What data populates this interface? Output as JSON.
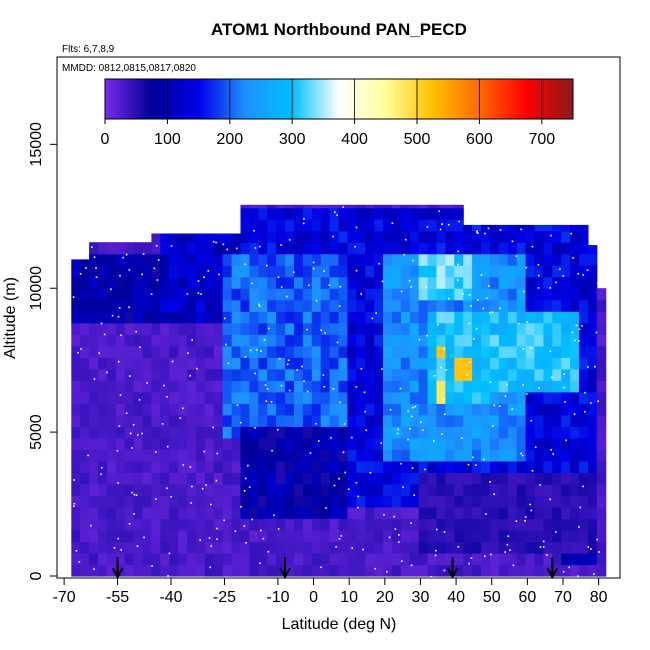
{
  "chart_data": {
    "type": "heatmap",
    "title": "ATOM1 Northbound PAN_PECD",
    "flights_label": "Flts: 6,7,8,9",
    "dates_label": "MMDD: 0812,0815,0817,0820",
    "xlabel": "Latitude (deg N)",
    "ylabel": "Altitude (m)",
    "xlim": [
      -72,
      86
    ],
    "ylim": [
      0,
      18000
    ],
    "x_ticks": [
      -70,
      -55,
      -40,
      -25,
      -10,
      0,
      10,
      20,
      30,
      40,
      50,
      60,
      70,
      80
    ],
    "x_tick_labels": [
      "-70",
      "-55",
      "-40",
      "-25",
      "-10",
      "0",
      "10",
      "20",
      "30",
      "40",
      "50",
      "60",
      "70",
      "80"
    ],
    "y_ticks": [
      0,
      5000,
      10000,
      15000
    ],
    "y_tick_labels": [
      "0",
      "5000",
      "10000",
      "15000"
    ],
    "colorbar": {
      "min": 0,
      "max": 750,
      "ticks": [
        0,
        100,
        200,
        300,
        400,
        500,
        600,
        700
      ],
      "tick_labels": [
        "0",
        "100",
        "200",
        "300",
        "400",
        "500",
        "600",
        "700"
      ],
      "dividers": [
        100,
        200,
        300,
        400,
        500,
        600,
        700
      ],
      "colors": [
        "#7a2be8",
        "#00009a",
        "#0000e6",
        "#1e90ff",
        "#00bfff",
        "#ffffff",
        "#ffff99",
        "#ffc000",
        "#ff6a00",
        "#ff0000",
        "#8b1a1a"
      ]
    },
    "arrow_latitudes": [
      -55,
      -8,
      39,
      67
    ],
    "data_extent": {
      "lat_min": -68,
      "lat_max": 80,
      "alt_top": 12900
    },
    "column_tops": [
      {
        "lat": -68,
        "alt": 11000
      },
      {
        "lat": -63,
        "alt": 11600
      },
      {
        "lat": -45,
        "alt": 11900
      },
      {
        "lat": -20,
        "alt": 12900
      },
      {
        "lat": 40,
        "alt": 12900
      },
      {
        "lat": 42,
        "alt": 12200
      },
      {
        "lat": 76,
        "alt": 12200
      },
      {
        "lat": 78,
        "alt": 11500
      },
      {
        "lat": 80,
        "alt": 10000
      }
    ],
    "regions": [
      {
        "lat": [
          -68,
          80
        ],
        "alt": [
          0,
          9000
        ],
        "value": 30
      },
      {
        "lat": [
          -68,
          -42
        ],
        "alt": [
          9000,
          11000
        ],
        "value": 90
      },
      {
        "lat": [
          -42,
          -20
        ],
        "alt": [
          9000,
          12000
        ],
        "value": 120
      },
      {
        "lat": [
          -20,
          80
        ],
        "alt": [
          2500,
          12900
        ],
        "value": 140
      },
      {
        "lat": [
          -25,
          10
        ],
        "alt": [
          5000,
          11000
        ],
        "value": 200
      },
      {
        "lat": [
          20,
          60
        ],
        "alt": [
          4000,
          11000
        ],
        "value": 230
      },
      {
        "lat": [
          30,
          45
        ],
        "alt": [
          9500,
          11200
        ],
        "value": 320
      },
      {
        "lat": [
          32,
          50
        ],
        "alt": [
          6000,
          9000
        ],
        "value": 300
      },
      {
        "lat": [
          50,
          75
        ],
        "alt": [
          6500,
          9000
        ],
        "value": 300
      },
      {
        "lat": [
          35,
          38
        ],
        "alt": [
          7600,
          8000
        ],
        "value": 520
      },
      {
        "lat": [
          40,
          44
        ],
        "alt": [
          7000,
          7600
        ],
        "value": 520
      },
      {
        "lat": [
          34,
          36
        ],
        "alt": [
          6200,
          6600
        ],
        "value": 480
      },
      {
        "lat": [
          36,
          38
        ],
        "alt": [
          8800,
          9300
        ],
        "value": 450
      },
      {
        "lat": [
          70,
          80
        ],
        "alt": [
          500,
          3000
        ],
        "value": 110
      },
      {
        "lat": [
          -20,
          10
        ],
        "alt": [
          2000,
          5000
        ],
        "value": 90
      },
      {
        "lat": [
          30,
          80
        ],
        "alt": [
          1000,
          3500
        ],
        "value": 50
      }
    ]
  }
}
